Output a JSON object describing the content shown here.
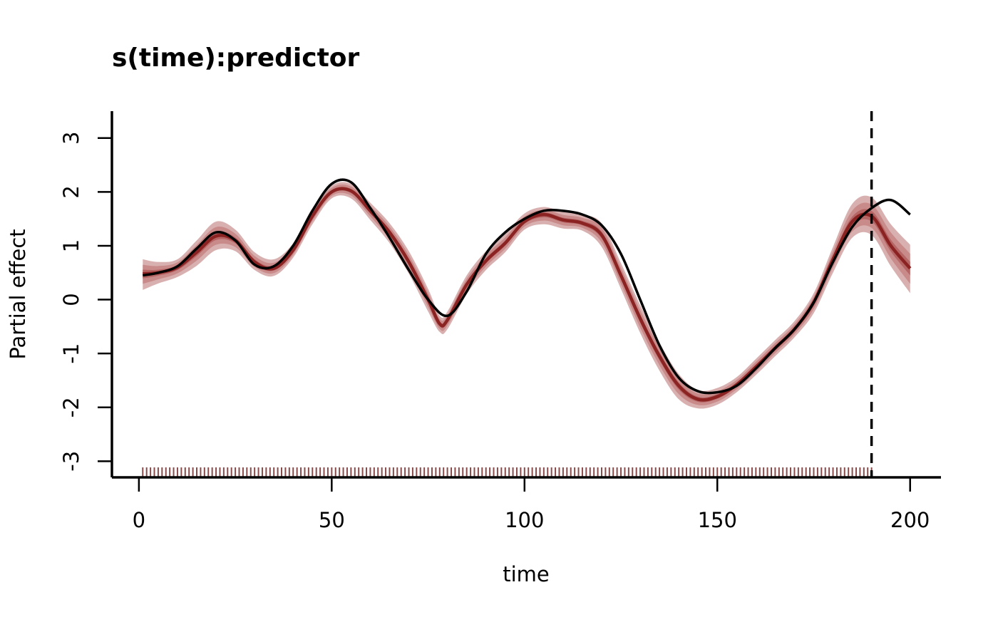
{
  "chart_data": {
    "type": "line",
    "title": "s(time):predictor",
    "xlabel": "time",
    "ylabel": "Partial effect",
    "xlim": [
      -7,
      208
    ],
    "ylim": [
      -3.3,
      3.5
    ],
    "x_ticks": [
      0,
      50,
      100,
      150,
      200
    ],
    "y_ticks": [
      -3,
      -2,
      -1,
      0,
      1,
      2,
      3
    ],
    "grid": false,
    "forecast_boundary": 190,
    "colors": {
      "band_outer": "#d9b0b0",
      "band_mid": "#c98a8a",
      "band_inner": "#b66565",
      "estimate": "#8b2323",
      "truth": "#000000",
      "boundary": "#000000",
      "rug": "#8b4a4a"
    },
    "rug": {
      "from": 1,
      "to": 190,
      "step": 1
    },
    "series": [
      {
        "role": "estimate",
        "x": [
          1,
          5,
          10,
          15,
          20,
          25,
          30,
          35,
          40,
          45,
          50,
          55,
          60,
          65,
          70,
          75,
          78,
          80,
          85,
          90,
          95,
          100,
          105,
          110,
          115,
          120,
          125,
          130,
          135,
          140,
          145,
          150,
          155,
          160,
          165,
          170,
          175,
          180,
          185,
          190,
          195,
          200
        ],
        "y": [
          0.48,
          0.5,
          0.6,
          0.88,
          1.18,
          1.1,
          0.7,
          0.58,
          0.92,
          1.55,
          2.0,
          2.02,
          1.65,
          1.25,
          0.7,
          0.0,
          -0.45,
          -0.38,
          0.28,
          0.72,
          1.05,
          1.45,
          1.58,
          1.48,
          1.42,
          1.2,
          0.45,
          -0.35,
          -1.05,
          -1.6,
          -1.85,
          -1.8,
          -1.58,
          -1.25,
          -0.9,
          -0.55,
          -0.05,
          0.75,
          1.45,
          1.55,
          1.0,
          0.58
        ],
        "lower_outer": [
          0.18,
          0.3,
          0.42,
          0.63,
          0.92,
          0.9,
          0.55,
          0.44,
          0.78,
          1.4,
          1.88,
          1.88,
          1.48,
          1.05,
          0.48,
          -0.22,
          -0.6,
          -0.55,
          0.1,
          0.55,
          0.88,
          1.3,
          1.4,
          1.32,
          1.28,
          0.98,
          0.2,
          -0.62,
          -1.32,
          -1.85,
          -2.02,
          -1.95,
          -1.72,
          -1.4,
          -1.05,
          -0.7,
          -0.25,
          0.5,
          1.15,
          1.2,
          0.62,
          0.12
        ],
        "upper_outer": [
          0.75,
          0.7,
          0.75,
          1.1,
          1.45,
          1.3,
          0.88,
          0.75,
          1.05,
          1.7,
          2.12,
          2.15,
          1.8,
          1.42,
          0.9,
          0.2,
          -0.3,
          -0.22,
          0.45,
          0.9,
          1.22,
          1.6,
          1.72,
          1.63,
          1.58,
          1.42,
          0.68,
          -0.1,
          -0.8,
          -1.38,
          -1.68,
          -1.64,
          -1.44,
          -1.1,
          -0.75,
          -0.4,
          0.12,
          0.98,
          1.78,
          1.9,
          1.4,
          1.02
        ]
      },
      {
        "role": "truth",
        "x": [
          1,
          5,
          10,
          15,
          20,
          25,
          30,
          35,
          40,
          45,
          50,
          55,
          60,
          65,
          70,
          75,
          80,
          85,
          90,
          95,
          100,
          105,
          110,
          115,
          120,
          125,
          130,
          135,
          140,
          145,
          150,
          155,
          160,
          165,
          170,
          175,
          180,
          185,
          190,
          195,
          200
        ],
        "y": [
          0.45,
          0.5,
          0.62,
          0.95,
          1.25,
          1.1,
          0.65,
          0.62,
          1.0,
          1.65,
          2.15,
          2.18,
          1.7,
          1.15,
          0.55,
          0.0,
          -0.3,
          0.15,
          0.85,
          1.25,
          1.5,
          1.65,
          1.65,
          1.58,
          1.38,
          0.85,
          0.0,
          -0.85,
          -1.45,
          -1.7,
          -1.72,
          -1.6,
          -1.28,
          -0.9,
          -0.55,
          -0.05,
          0.7,
          1.35,
          1.7,
          1.85,
          1.58
        ]
      }
    ]
  }
}
